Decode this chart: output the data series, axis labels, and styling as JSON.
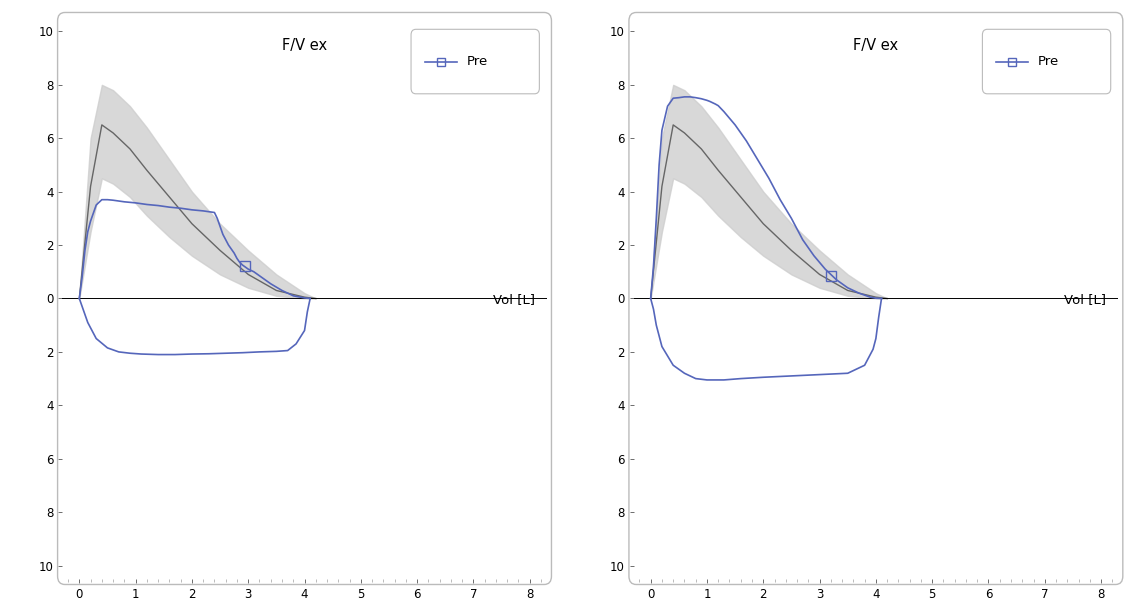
{
  "title": "F/V ex",
  "xlabel": "Vol [L]",
  "xlim": [
    -0.3,
    8.3
  ],
  "ylim": [
    -10.5,
    10.5
  ],
  "xticks": [
    0,
    1,
    2,
    3,
    4,
    5,
    6,
    7,
    8
  ],
  "yticks": [
    -10,
    -8,
    -6,
    -4,
    -2,
    0,
    2,
    4,
    6,
    8,
    10
  ],
  "yticklabels": [
    "10",
    "8",
    "6",
    "4",
    "2",
    "0",
    "2",
    "4",
    "6",
    "8",
    "10"
  ],
  "legend_label": "Pre",
  "blue_color": "#5566bb",
  "gray_line_color": "#666666",
  "band_color": "#cccccc",
  "band_alpha": 0.75,
  "background": "#ffffff",
  "border_color": "#bbbbbb",
  "left_plot": {
    "ref_vol": [
      0,
      0.2,
      0.4,
      0.6,
      0.9,
      1.2,
      1.6,
      2.0,
      2.5,
      3.0,
      3.5,
      4.0,
      4.2
    ],
    "ref_upper": [
      0,
      6.0,
      8.0,
      7.8,
      7.2,
      6.4,
      5.2,
      4.0,
      2.8,
      1.8,
      0.9,
      0.2,
      0
    ],
    "ref_lower": [
      0,
      2.5,
      4.5,
      4.3,
      3.8,
      3.1,
      2.3,
      1.6,
      0.9,
      0.4,
      0.1,
      0,
      0
    ],
    "ref_mean": [
      0,
      4.2,
      6.5,
      6.2,
      5.6,
      4.8,
      3.8,
      2.8,
      1.8,
      0.9,
      0.3,
      0.05,
      0
    ],
    "ex_vol": [
      0,
      0.05,
      0.1,
      0.15,
      0.2,
      0.3,
      0.4,
      0.5,
      0.6,
      0.7,
      0.8,
      0.9,
      1.0,
      1.1,
      1.2,
      1.3,
      1.4,
      1.5,
      1.6,
      1.7,
      1.8,
      1.9,
      2.0,
      2.1,
      2.2,
      2.3,
      2.4,
      2.45,
      2.5,
      2.55,
      2.6,
      2.65,
      2.7,
      2.75,
      2.8,
      2.85,
      2.9,
      3.0,
      3.1,
      3.2,
      3.4,
      3.6,
      3.8,
      4.0,
      4.1
    ],
    "ex_flow": [
      0,
      0.8,
      1.8,
      2.5,
      2.9,
      3.5,
      3.7,
      3.7,
      3.68,
      3.65,
      3.62,
      3.6,
      3.58,
      3.55,
      3.52,
      3.5,
      3.48,
      3.45,
      3.42,
      3.4,
      3.38,
      3.35,
      3.32,
      3.3,
      3.28,
      3.25,
      3.22,
      3.0,
      2.7,
      2.4,
      2.2,
      2.0,
      1.85,
      1.7,
      1.5,
      1.35,
      1.25,
      1.1,
      1.0,
      0.85,
      0.55,
      0.3,
      0.1,
      0.02,
      0
    ],
    "in_vol": [
      0,
      0.05,
      0.15,
      0.3,
      0.5,
      0.7,
      0.9,
      1.1,
      1.4,
      1.7,
      2.0,
      2.3,
      2.6,
      2.9,
      3.2,
      3.5,
      3.7,
      3.85,
      4.0,
      4.05,
      4.1
    ],
    "in_flow": [
      0,
      -0.3,
      -0.9,
      -1.5,
      -1.85,
      -2.0,
      -2.05,
      -2.08,
      -2.1,
      -2.1,
      -2.08,
      -2.07,
      -2.05,
      -2.03,
      -2.0,
      -1.98,
      -1.95,
      -1.7,
      -1.2,
      -0.5,
      0
    ],
    "marker_vol": 2.95,
    "marker_flow": 1.2
  },
  "right_plot": {
    "ref_vol": [
      0,
      0.2,
      0.4,
      0.6,
      0.9,
      1.2,
      1.6,
      2.0,
      2.5,
      3.0,
      3.5,
      4.0,
      4.2
    ],
    "ref_upper": [
      0,
      6.0,
      8.0,
      7.8,
      7.2,
      6.4,
      5.2,
      4.0,
      2.8,
      1.8,
      0.9,
      0.2,
      0
    ],
    "ref_lower": [
      0,
      2.5,
      4.5,
      4.3,
      3.8,
      3.1,
      2.3,
      1.6,
      0.9,
      0.4,
      0.1,
      0,
      0
    ],
    "ref_mean": [
      0,
      4.2,
      6.5,
      6.2,
      5.6,
      4.8,
      3.8,
      2.8,
      1.8,
      0.9,
      0.3,
      0.05,
      0
    ],
    "ex_vol": [
      0,
      0.05,
      0.1,
      0.15,
      0.2,
      0.3,
      0.4,
      0.5,
      0.6,
      0.7,
      0.8,
      0.9,
      1.0,
      1.05,
      1.1,
      1.15,
      1.2,
      1.3,
      1.5,
      1.7,
      1.9,
      2.1,
      2.3,
      2.5,
      2.7,
      2.9,
      3.1,
      3.3,
      3.5,
      3.7,
      3.9,
      4.0,
      4.1
    ],
    "ex_flow": [
      0,
      1.2,
      3.0,
      5.0,
      6.3,
      7.2,
      7.5,
      7.52,
      7.55,
      7.55,
      7.52,
      7.48,
      7.42,
      7.38,
      7.33,
      7.28,
      7.22,
      7.0,
      6.5,
      5.9,
      5.2,
      4.5,
      3.7,
      3.0,
      2.2,
      1.6,
      1.1,
      0.7,
      0.4,
      0.2,
      0.05,
      0.01,
      0
    ],
    "in_vol": [
      0,
      0.05,
      0.1,
      0.2,
      0.4,
      0.6,
      0.8,
      1.0,
      1.3,
      1.6,
      2.0,
      2.5,
      3.0,
      3.5,
      3.8,
      3.95,
      4.0,
      4.05,
      4.1
    ],
    "in_flow": [
      0,
      -0.4,
      -1.0,
      -1.8,
      -2.5,
      -2.8,
      -3.0,
      -3.05,
      -3.05,
      -3.0,
      -2.95,
      -2.9,
      -2.85,
      -2.8,
      -2.5,
      -1.9,
      -1.5,
      -0.7,
      0
    ],
    "marker_vol": 3.2,
    "marker_flow": 0.85
  }
}
